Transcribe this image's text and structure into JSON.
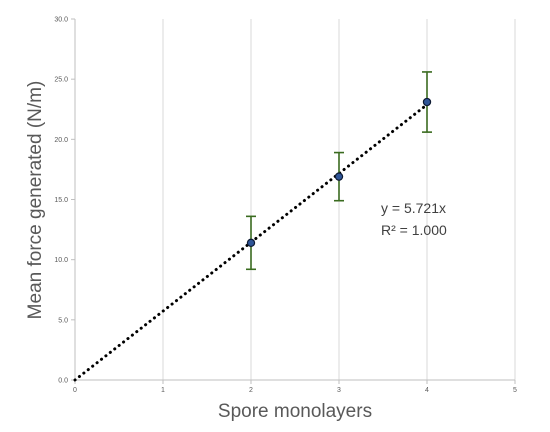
{
  "chart_data": {
    "type": "scatter",
    "title": "",
    "xlabel": "Spore monolayers",
    "ylabel": "Mean force generated (N/m)",
    "xlim": [
      0,
      5
    ],
    "ylim": [
      0,
      30
    ],
    "x_ticks": [
      "0",
      "1",
      "2",
      "3",
      "4",
      "5"
    ],
    "y_ticks": [
      "0.0",
      "5.0",
      "10.0",
      "15.0",
      "20.0",
      "25.0",
      "30.0"
    ],
    "grid": "vertical",
    "series": [
      {
        "x": [
          2,
          3,
          4
        ],
        "y": [
          11.4,
          16.9,
          23.1
        ],
        "y_error": [
          2.2,
          2.0,
          2.5
        ]
      }
    ],
    "trendline": {
      "type": "linear-through-origin",
      "slope": 5.721,
      "x_range": [
        0,
        4
      ]
    },
    "annotations": [
      "y = 5.721x",
      "R² = 1.000"
    ],
    "colors": {
      "marker_fill": "#2f5597",
      "marker_edge": "#0d1a33",
      "error_bar": "#3a6b1f",
      "trendline": "#000000",
      "grid": "#d9d9d9",
      "axis": "#bfbfbf",
      "text": "#595959"
    }
  }
}
